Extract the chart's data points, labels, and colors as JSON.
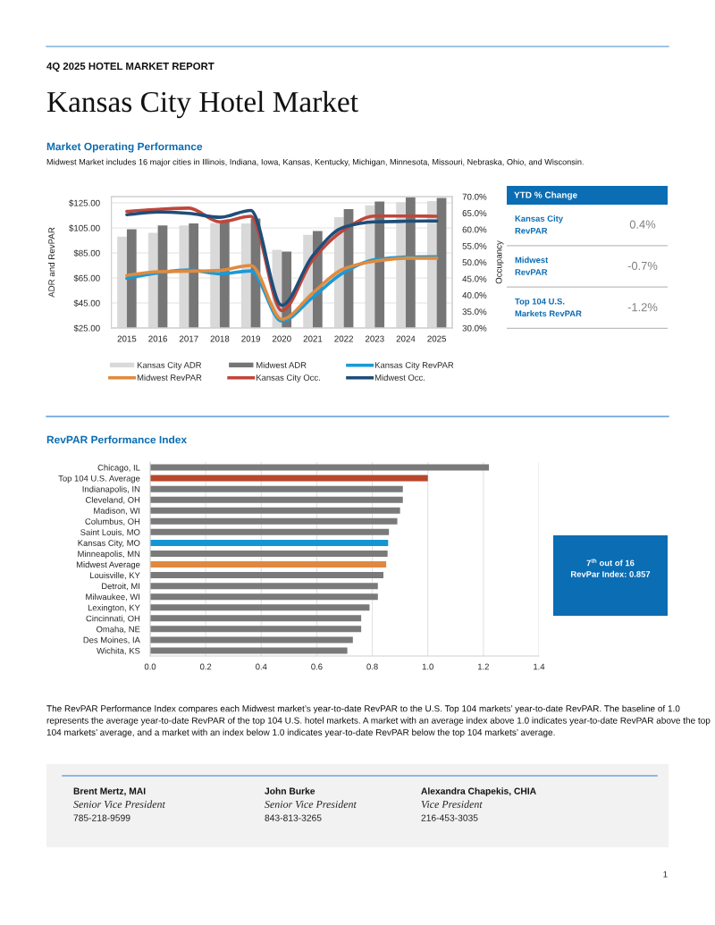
{
  "chart_data": [
    {
      "type": "bar",
      "title": "Market Operating Performance",
      "subtitle": "Midwest Market includes 16 major cities in Illinois, Indiana, Iowa, Kansas, Kentucky, Michigan, Minnesota, Missouri, Nebraska, Ohio, and Wisconsin.",
      "annotations": [
        "4Q 2025 HOTEL MARKET REPORT",
        "Kansas City Hotel Market"
      ],
      "ylabel": "ADR and RevPAR",
      "y2label": "Occupancy",
      "categories": [
        "2015",
        "2016",
        "2017",
        "2018",
        "2019",
        "2020",
        "2021",
        "2022",
        "2023",
        "2024",
        "2025"
      ],
      "ylim": [
        25,
        130
      ],
      "yticks": [
        {
          "value": 25,
          "label": "$25.00"
        },
        {
          "value": 45,
          "label": "$45.00"
        },
        {
          "value": 65,
          "label": "$65.00"
        },
        {
          "value": 85,
          "label": "$85.00"
        },
        {
          "value": 105,
          "label": "$105.00"
        },
        {
          "value": 125,
          "label": "$125.00"
        }
      ],
      "y2lim": [
        30,
        70
      ],
      "y2ticks": [
        {
          "value": 30,
          "label": "30.0%"
        },
        {
          "value": 35,
          "label": "35.0%"
        },
        {
          "value": 40,
          "label": "40.0%"
        },
        {
          "value": 45,
          "label": "45.0%"
        },
        {
          "value": 50,
          "label": "50.0%"
        },
        {
          "value": 55,
          "label": "55.0%"
        },
        {
          "value": 60,
          "label": "60.0%"
        },
        {
          "value": 65,
          "label": "65.0%"
        },
        {
          "value": 70,
          "label": "70.0%"
        }
      ],
      "grid": "y",
      "legend": "bottom",
      "series": [
        {
          "name": "Kansas City ADR",
          "type": "bar",
          "color": "#d9d9d9",
          "values": [
            98,
            101,
            107,
            109,
            108.5,
            87.5,
            99.5,
            113.5,
            123,
            125.5,
            126.5
          ]
        },
        {
          "name": "Midwest ADR",
          "type": "bar",
          "color": "#767676",
          "values": [
            104,
            107,
            108.5,
            110,
            112.5,
            86,
            102.5,
            120,
            126,
            129.5,
            129
          ]
        },
        {
          "name": "Kansas City RevPAR",
          "type": "line",
          "color": "#1b9ad6",
          "values": [
            64.7,
            69,
            71.3,
            68.3,
            70.6,
            30.5,
            49.5,
            69.4,
            79.6,
            81.7,
            82
          ]
        },
        {
          "name": "Midwest RevPAR",
          "type": "line",
          "color": "#e08b3f",
          "values": [
            67,
            70,
            70.4,
            71.1,
            75,
            32,
            53,
            72.3,
            78.4,
            80.8,
            80.8
          ]
        },
        {
          "name": "Kansas City Occ.",
          "type": "line",
          "axis": "y2",
          "color": "#c0463a",
          "values": [
            65.5,
            66.1,
            66.5,
            62.3,
            64,
            35.3,
            50.8,
            59.8,
            64.1,
            64.1,
            64
          ]
        },
        {
          "name": "Midwest Occ.",
          "type": "line",
          "axis": "y2",
          "color": "#1f4e79",
          "values": [
            64.5,
            65.3,
            64.9,
            63.7,
            65.8,
            36.9,
            52,
            60.7,
            62.3,
            62.5,
            62.6
          ]
        }
      ]
    },
    {
      "type": "other",
      "title": "YTD % Change",
      "annotations": [
        "Kansas City\nRevPAR",
        "0.4%",
        "Midwest\nRevPAR",
        "-0.7%",
        "Top 104 U.S.\nMarkets RevPAR",
        "-1.2%"
      ]
    },
    {
      "type": "bar",
      "orientation": "horizontal",
      "title": "RevPAR Performance Index",
      "categories": [
        "Chicago, IL",
        "Top 104 U.S. Average",
        "Indianapolis, IN",
        "Cleveland, OH",
        "Madison, WI",
        "Columbus, OH",
        "Saint Louis, MO",
        "Kansas City, MO",
        "Minneapolis, MN",
        "Midwest Average",
        "Louisville, KY",
        "Detroit, MI",
        "Milwaukee, WI",
        "Lexington, KY",
        "Cincinnati, OH",
        "Omaha, NE",
        "Des Moines, IA",
        "Wichita, KS"
      ],
      "values": [
        1.22,
        1.0,
        0.91,
        0.91,
        0.9,
        0.89,
        0.86,
        0.857,
        0.855,
        0.85,
        0.84,
        0.82,
        0.82,
        0.79,
        0.76,
        0.76,
        0.73,
        0.71
      ],
      "colors": [
        "#7a7a7a",
        "#b8472c",
        "#7a7a7a",
        "#7a7a7a",
        "#7a7a7a",
        "#7a7a7a",
        "#7a7a7a",
        "#1596d3",
        "#7a7a7a",
        "#e0883f",
        "#7a7a7a",
        "#7a7a7a",
        "#7a7a7a",
        "#7a7a7a",
        "#7a7a7a",
        "#7a7a7a",
        "#7a7a7a",
        "#7a7a7a"
      ],
      "xlim": [
        0,
        1.4
      ],
      "xticks": [
        {
          "value": 0,
          "label": "0.0"
        },
        {
          "value": 0.2,
          "label": "0.2"
        },
        {
          "value": 0.4,
          "label": "0.4"
        },
        {
          "value": 0.6,
          "label": "0.6"
        },
        {
          "value": 0.8,
          "label": "0.8"
        },
        {
          "value": 1.0,
          "label": "1.0"
        },
        {
          "value": 1.2,
          "label": "1.2"
        },
        {
          "value": 1.4,
          "label": "1.4"
        }
      ],
      "grid": "x",
      "annotations": [
        "The RevPAR Performance Index compares each Midwest market’s year-to-date RevPAR to the U.S. Top 104 markets’ year-to-date RevPAR. The baseline of 1.0 represents the average year-to-date RevPAR of the top 104 U.S. hotel markets. A market with an average index above 1.0 indicates year-to-date RevPAR above the top 104 markets’ average, and a market with an index below 1.0 indicates year-to-date RevPAR below the top 104 markets’ average."
      ]
    },
    {
      "type": "other",
      "annotations": [
        "7$^{th}$ out of 16",
        "RevPar Index: 0.857"
      ]
    },
    {
      "type": "other",
      "annotations": [
        "Brent Mertz, MAI",
        "Senior Vice President",
        "785-218-9599",
        "John Burke",
        "Senior Vice President",
        "843-813-3265",
        "Alexandra Chapekis, CHIA",
        "Vice President",
        "216-453-3035",
        "1"
      ]
    }
  ]
}
